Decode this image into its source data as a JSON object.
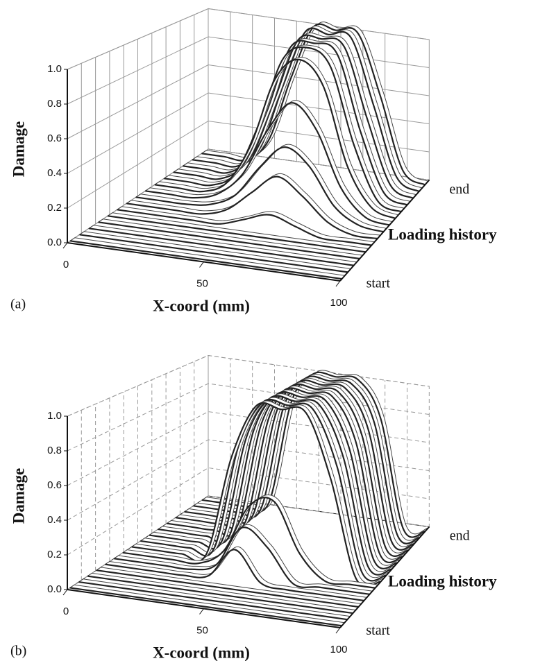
{
  "chart_data": [
    {
      "type": "ribbon3d",
      "panel_label": "(a)",
      "ylabel": "Damage",
      "xlabel": "X-coord (mm)",
      "zlabel": "Loading history",
      "x": [
        0,
        10,
        20,
        30,
        40,
        50,
        60,
        70,
        80,
        90,
        100
      ],
      "xlim": [
        0,
        100
      ],
      "xticks": [
        0,
        50,
        100
      ],
      "ylim": [
        0,
        1
      ],
      "yticks": [
        {
          "value": 0,
          "label": "0.0"
        },
        0.2,
        0.4,
        0.6,
        0.8,
        {
          "value": 1,
          "label": "1.0"
        }
      ],
      "z_categories": [
        "start",
        null,
        null,
        null,
        null,
        null,
        null,
        null,
        null,
        null,
        null,
        null,
        null,
        null,
        "end"
      ],
      "grid": true,
      "grid_style": "solid",
      "color": "#ffffff",
      "series": [
        {
          "values": [
            0,
            0,
            0,
            0,
            0,
            0,
            0,
            0,
            0,
            0,
            0
          ]
        },
        {
          "values": [
            0,
            0,
            0,
            0,
            0,
            0,
            0,
            0,
            0,
            0,
            0
          ]
        },
        {
          "values": [
            0,
            0,
            0,
            0,
            0,
            0,
            0,
            0,
            0,
            0,
            0
          ]
        },
        {
          "values": [
            0,
            0,
            0,
            0,
            0,
            0,
            0,
            0,
            0,
            0,
            0
          ]
        },
        {
          "values": [
            0,
            0,
            0,
            0,
            0,
            0,
            0,
            0,
            0,
            0,
            0
          ]
        },
        {
          "values": [
            0,
            0,
            0,
            0,
            0,
            0.05,
            0.1,
            0.05,
            0,
            0,
            0
          ]
        },
        {
          "values": [
            0,
            0,
            0,
            0,
            0.05,
            0.18,
            0.3,
            0.2,
            0.06,
            0,
            0
          ]
        },
        {
          "values": [
            0,
            0,
            0,
            0.02,
            0.1,
            0.3,
            0.45,
            0.35,
            0.12,
            0.02,
            0
          ]
        },
        {
          "values": [
            0,
            0,
            0,
            0.05,
            0.2,
            0.5,
            0.7,
            0.55,
            0.2,
            0.03,
            0
          ]
        },
        {
          "values": [
            0,
            0,
            0,
            0.08,
            0.35,
            0.8,
            0.95,
            0.8,
            0.3,
            0.05,
            0
          ]
        },
        {
          "values": [
            0,
            0,
            0,
            0.1,
            0.45,
            0.9,
            1,
            0.9,
            0.4,
            0.05,
            0
          ]
        },
        {
          "values": [
            0,
            0,
            0,
            0.12,
            0.5,
            0.95,
            1,
            0.95,
            0.45,
            0.06,
            0
          ]
        },
        {
          "values": [
            0,
            0,
            0,
            0.14,
            0.55,
            0.97,
            1,
            0.97,
            0.5,
            0.07,
            0
          ]
        },
        {
          "values": [
            0,
            0,
            0,
            0.15,
            0.6,
            1,
            1,
            1,
            0.55,
            0.08,
            0
          ]
        },
        {
          "values": [
            0,
            0,
            0,
            0.16,
            0.62,
            1,
            1,
            1,
            0.58,
            0.08,
            0
          ]
        }
      ]
    },
    {
      "type": "ribbon3d",
      "panel_label": "(b)",
      "ylabel": "Damage",
      "xlabel": "X-coord (mm)",
      "zlabel": "Loading history",
      "x": [
        0,
        10,
        20,
        30,
        40,
        50,
        60,
        70,
        80,
        90,
        100
      ],
      "xlim": [
        0,
        100
      ],
      "xticks": [
        0,
        50,
        100
      ],
      "ylim": [
        0,
        1
      ],
      "yticks": [
        {
          "value": 0,
          "label": "0.0"
        },
        0.2,
        0.4,
        0.6,
        0.8,
        {
          "value": 1,
          "label": "1.0"
        }
      ],
      "z_categories": [
        "start",
        null,
        null,
        null,
        null,
        null,
        null,
        null,
        null,
        null,
        null,
        null,
        null,
        null,
        null,
        "end"
      ],
      "grid": true,
      "grid_style": "dashed",
      "color": "#ffffff",
      "series": [
        {
          "values": [
            0,
            0,
            0,
            0,
            0,
            0,
            0,
            0,
            0,
            0,
            0
          ]
        },
        {
          "values": [
            0,
            0,
            0,
            0,
            0,
            0,
            0,
            0,
            0,
            0,
            0
          ]
        },
        {
          "values": [
            0,
            0,
            0,
            0,
            0,
            0,
            0,
            0,
            0,
            0,
            0
          ]
        },
        {
          "values": [
            0,
            0,
            0,
            0,
            0,
            0,
            0,
            0,
            0,
            0,
            0
          ]
        },
        {
          "values": [
            0,
            0,
            0,
            0,
            0.02,
            0.2,
            0.02,
            0,
            0,
            0,
            0
          ]
        },
        {
          "values": [
            0,
            0,
            0,
            0,
            0.05,
            0.3,
            0.2,
            0,
            0,
            0,
            0
          ]
        },
        {
          "values": [
            0,
            0,
            0,
            0,
            0.1,
            0.4,
            0.45,
            0.15,
            0,
            0,
            0
          ]
        },
        {
          "values": [
            0,
            0,
            0,
            0.02,
            0.65,
            1,
            1,
            1,
            0.6,
            0,
            0
          ]
        },
        {
          "values": [
            0,
            0,
            0,
            0.02,
            0.7,
            1,
            1,
            1,
            0.65,
            0,
            0
          ]
        },
        {
          "values": [
            0,
            0,
            0,
            0.03,
            0.72,
            1,
            1,
            1,
            0.68,
            0,
            0
          ]
        },
        {
          "values": [
            0,
            0,
            0,
            0.03,
            0.74,
            1,
            1,
            1,
            0.7,
            0,
            0
          ]
        },
        {
          "values": [
            0,
            0,
            0,
            0.04,
            0.75,
            1,
            1,
            1,
            0.72,
            0,
            0
          ]
        },
        {
          "values": [
            0,
            0,
            0,
            0.04,
            0.76,
            1,
            1,
            1,
            0.73,
            0,
            0
          ]
        },
        {
          "values": [
            0,
            0,
            0,
            0.05,
            0.77,
            1,
            1,
            1,
            0.74,
            0,
            0
          ]
        },
        {
          "values": [
            0,
            0,
            0,
            0.05,
            0.78,
            1,
            1,
            1,
            0.75,
            0,
            0
          ]
        },
        {
          "values": [
            0,
            0,
            0,
            0.05,
            0.78,
            1,
            1,
            1,
            0.75,
            0,
            0
          ]
        }
      ]
    }
  ]
}
